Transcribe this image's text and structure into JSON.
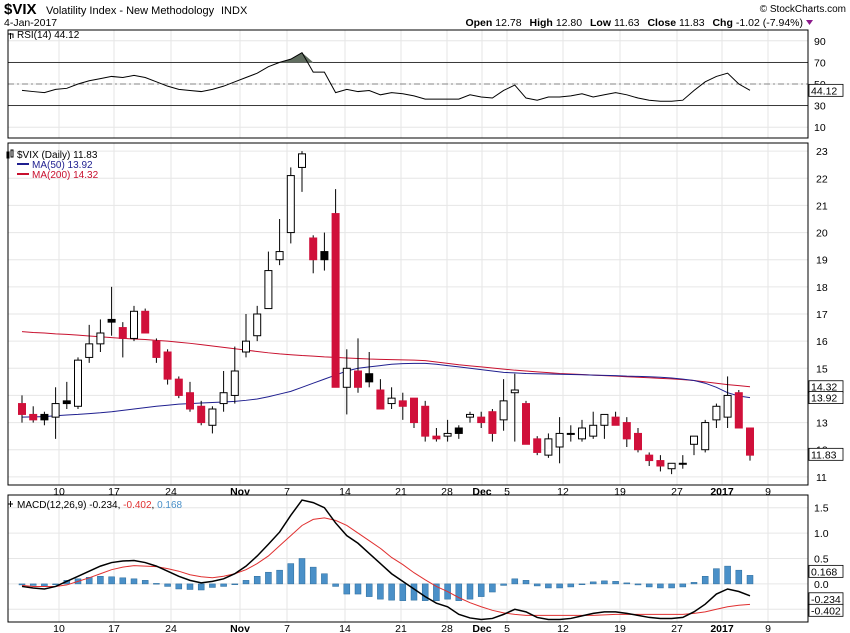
{
  "header": {
    "symbol": "$VIX",
    "name": "Volatility Index - New Methodology",
    "exchange": "INDX",
    "date": "4-Jan-2017",
    "open_label": "Open",
    "open": "12.78",
    "high_label": "High",
    "high": "12.80",
    "low_label": "Low",
    "low": "11.63",
    "close_label": "Close",
    "close": "11.83",
    "chg_label": "Chg",
    "chg": "-1.02 (-7.94%)",
    "watermark": "© StockCharts.com"
  },
  "colors": {
    "up": "#ffffff",
    "down": "#d0103a",
    "black": "#000000",
    "ma50": "#1f1f8f",
    "ma200": "#c8102e",
    "macd_line": "#000000",
    "signal_line": "#e03030",
    "hist": "#4a90c8",
    "grid": "#e6e6e6",
    "rsi_fill": "#606d5f"
  },
  "x_axis": {
    "ticks": [
      "10",
      "17",
      "24",
      "Nov",
      "7",
      "14",
      "21",
      "28",
      "Dec",
      "5",
      "12",
      "19",
      "27",
      "2017",
      "9"
    ],
    "bold": [
      "Nov",
      "Dec",
      "2017"
    ]
  },
  "rsi_panel": {
    "legend": "RSI(14) 44.12",
    "ticks": [
      "90",
      "70",
      "50",
      "30",
      "10"
    ],
    "last_label": "44.12"
  },
  "price_panel": {
    "legend_symbol": "$VIX (Daily) 11.83",
    "legend_ma50": "MA(50) 13.92",
    "legend_ma200": "MA(200) 14.32",
    "ticks": [
      "23",
      "22",
      "21",
      "20",
      "19",
      "18",
      "17",
      "16",
      "15",
      "14",
      "13",
      "12",
      "11"
    ],
    "labels": {
      "ma200": "14.32",
      "ma50": "13.92",
      "close": "11.83"
    }
  },
  "macd_panel": {
    "legend_prefix": "MACD(12,26,9)",
    "macd": "-0.234",
    "signal": "-0.402",
    "hist": "0.168",
    "ticks": [
      "1.5",
      "1.0",
      "0.5",
      "0.0",
      "-0.5"
    ],
    "labels": {
      "hist": "0.168",
      "macd": "-0.234",
      "signal": "-0.402"
    }
  },
  "chart_data": {
    "type": "candlestick",
    "title": "$VIX Volatility Index - New Methodology INDX",
    "series_names": [
      "$VIX (Daily)",
      "MA(50)",
      "MA(200)"
    ],
    "price_ylim": [
      10.7,
      23.3
    ],
    "ohlc": [
      [
        13.7,
        14.0,
        13.0,
        13.3
      ],
      [
        13.3,
        13.6,
        13.0,
        13.1
      ],
      [
        13.3,
        13.4,
        12.9,
        13.1
      ],
      [
        13.2,
        14.3,
        12.4,
        13.7
      ],
      [
        13.8,
        14.5,
        13.5,
        13.7
      ],
      [
        13.6,
        15.4,
        13.5,
        15.3
      ],
      [
        15.4,
        16.6,
        15.2,
        15.9
      ],
      [
        15.9,
        16.8,
        15.6,
        16.3
      ],
      [
        16.8,
        18.0,
        16.2,
        16.7
      ],
      [
        16.5,
        16.7,
        15.4,
        16.1
      ],
      [
        16.1,
        17.3,
        16.0,
        17.1
      ],
      [
        17.1,
        17.2,
        16.3,
        16.3
      ],
      [
        16.0,
        16.1,
        15.2,
        15.4
      ],
      [
        15.6,
        15.7,
        14.4,
        14.6
      ],
      [
        14.6,
        14.7,
        13.9,
        14.0
      ],
      [
        14.1,
        14.5,
        13.4,
        13.5
      ],
      [
        13.6,
        13.8,
        12.9,
        13.0
      ],
      [
        12.9,
        13.6,
        12.6,
        13.5
      ],
      [
        13.7,
        14.9,
        13.4,
        14.1
      ],
      [
        14.0,
        15.8,
        13.7,
        14.9
      ],
      [
        15.6,
        17.0,
        15.4,
        16.0
      ],
      [
        16.2,
        17.3,
        16.0,
        17.0
      ],
      [
        17.2,
        19.3,
        17.2,
        18.6
      ],
      [
        19.0,
        20.5,
        18.8,
        19.3
      ],
      [
        20.0,
        22.4,
        19.6,
        22.1
      ],
      [
        22.4,
        23.0,
        21.5,
        22.9
      ],
      [
        19.8,
        19.9,
        18.5,
        19.0
      ],
      [
        19.3,
        20.0,
        18.6,
        19.0
      ],
      [
        20.7,
        21.6,
        14.3,
        14.3
      ],
      [
        14.3,
        15.7,
        13.3,
        15.0
      ],
      [
        14.9,
        16.1,
        14.1,
        14.3
      ],
      [
        14.8,
        15.6,
        14.3,
        14.5
      ],
      [
        14.2,
        14.6,
        13.5,
        13.5
      ],
      [
        13.7,
        14.3,
        13.5,
        13.9
      ],
      [
        13.8,
        14.1,
        13.1,
        13.6
      ],
      [
        13.9,
        13.9,
        12.8,
        13.0
      ],
      [
        13.6,
        13.8,
        12.3,
        12.5
      ],
      [
        12.5,
        12.8,
        12.3,
        12.4
      ],
      [
        12.5,
        13.1,
        12.3,
        12.6
      ],
      [
        12.8,
        12.9,
        12.4,
        12.6
      ],
      [
        13.2,
        13.4,
        13.0,
        13.3
      ],
      [
        13.2,
        13.4,
        12.8,
        13.0
      ],
      [
        13.4,
        13.5,
        12.3,
        12.6
      ],
      [
        13.1,
        14.6,
        12.7,
        13.8
      ],
      [
        14.1,
        14.8,
        12.3,
        14.2
      ],
      [
        13.7,
        13.8,
        12.3,
        12.2
      ],
      [
        12.4,
        12.5,
        11.8,
        11.9
      ],
      [
        11.8,
        12.6,
        11.7,
        12.4
      ],
      [
        12.1,
        13.2,
        11.5,
        12.6
      ],
      [
        12.6,
        12.9,
        12.3,
        12.6
      ],
      [
        12.4,
        13.1,
        12.3,
        12.8
      ],
      [
        12.5,
        13.4,
        12.4,
        12.9
      ],
      [
        12.9,
        13.2,
        12.4,
        13.3
      ],
      [
        13.2,
        13.4,
        12.9,
        12.9
      ],
      [
        13.0,
        13.2,
        12.1,
        12.4
      ],
      [
        12.6,
        12.8,
        11.9,
        12.0
      ],
      [
        11.8,
        11.9,
        11.4,
        11.6
      ],
      [
        11.6,
        11.8,
        11.2,
        11.4
      ],
      [
        11.3,
        11.5,
        11.1,
        11.5
      ],
      [
        11.5,
        11.8,
        11.3,
        11.5
      ],
      [
        12.2,
        12.5,
        11.8,
        12.5
      ],
      [
        12.0,
        13.1,
        11.9,
        13.0
      ],
      [
        13.1,
        13.7,
        12.8,
        13.6
      ],
      [
        13.2,
        14.7,
        12.8,
        14.0
      ],
      [
        14.1,
        14.2,
        12.8,
        12.8
      ],
      [
        12.8,
        12.8,
        11.6,
        11.8
      ]
    ],
    "ma50": [
      13.2,
      13.21,
      13.22,
      13.25,
      13.28,
      13.3,
      13.33,
      13.36,
      13.4,
      13.45,
      13.5,
      13.55,
      13.6,
      13.64,
      13.68,
      13.7,
      13.72,
      13.74,
      13.76,
      13.78,
      13.82,
      13.87,
      13.95,
      14.05,
      14.15,
      14.3,
      14.45,
      14.6,
      14.75,
      14.9,
      15.0,
      15.05,
      15.1,
      15.15,
      15.17,
      15.18,
      15.18,
      15.15,
      15.1,
      15.05,
      15.0,
      14.95,
      14.9,
      14.85,
      14.83,
      14.81,
      14.8,
      14.79,
      14.78,
      14.77,
      14.76,
      14.75,
      14.74,
      14.73,
      14.71,
      14.7,
      14.69,
      14.67,
      14.64,
      14.6,
      14.55,
      14.45,
      14.3,
      14.1,
      13.98,
      13.92
    ],
    "ma200": [
      16.35,
      16.32,
      16.3,
      16.27,
      16.25,
      16.22,
      16.19,
      16.16,
      16.13,
      16.1,
      16.08,
      16.06,
      16.03,
      16.0,
      15.96,
      15.92,
      15.87,
      15.82,
      15.77,
      15.72,
      15.67,
      15.62,
      15.57,
      15.53,
      15.5,
      15.47,
      15.45,
      15.42,
      15.4,
      15.38,
      15.36,
      15.34,
      15.33,
      15.32,
      15.31,
      15.3,
      15.28,
      15.23,
      15.18,
      15.13,
      15.09,
      15.05,
      15.01,
      14.97,
      14.93,
      14.9,
      14.87,
      14.84,
      14.81,
      14.79,
      14.77,
      14.75,
      14.73,
      14.71,
      14.69,
      14.67,
      14.65,
      14.63,
      14.61,
      14.58,
      14.55,
      14.5,
      14.45,
      14.4,
      14.36,
      14.32
    ],
    "rsi": [
      44.1,
      43,
      42,
      45,
      46,
      50,
      53,
      55,
      57,
      56,
      58,
      56,
      52,
      48,
      45,
      44,
      43,
      45,
      48,
      52,
      56,
      60,
      66,
      70,
      73,
      79,
      61,
      61,
      42,
      45,
      43,
      44,
      40,
      42,
      41,
      39,
      36,
      36,
      36,
      36,
      40,
      38,
      37,
      44,
      49,
      37,
      35,
      38,
      38,
      39,
      41,
      38,
      40,
      42,
      40,
      37,
      35,
      34,
      34,
      35,
      44,
      52,
      57,
      60,
      50,
      44.12
    ],
    "macd": [
      -0.05,
      -0.08,
      -0.1,
      -0.05,
      0.05,
      0.15,
      0.25,
      0.35,
      0.42,
      0.45,
      0.46,
      0.42,
      0.35,
      0.25,
      0.15,
      0.07,
      0.02,
      0.05,
      0.1,
      0.2,
      0.35,
      0.55,
      0.78,
      1.02,
      1.35,
      1.65,
      1.6,
      1.5,
      1.2,
      0.95,
      0.8,
      0.6,
      0.4,
      0.2,
      0.05,
      -0.1,
      -0.25,
      -0.38,
      -0.45,
      -0.6,
      -0.67,
      -0.7,
      -0.68,
      -0.6,
      -0.5,
      -0.55,
      -0.66,
      -0.7,
      -0.7,
      -0.68,
      -0.63,
      -0.58,
      -0.55,
      -0.55,
      -0.58,
      -0.62,
      -0.66,
      -0.68,
      -0.68,
      -0.66,
      -0.55,
      -0.4,
      -0.2,
      -0.1,
      -0.15,
      -0.234
    ],
    "signal": [
      -0.03,
      -0.05,
      -0.05,
      -0.05,
      -0.02,
      0.05,
      0.12,
      0.2,
      0.28,
      0.33,
      0.36,
      0.35,
      0.34,
      0.3,
      0.25,
      0.18,
      0.14,
      0.12,
      0.15,
      0.2,
      0.28,
      0.4,
      0.55,
      0.75,
      0.95,
      1.15,
      1.27,
      1.3,
      1.25,
      1.15,
      1.0,
      0.85,
      0.7,
      0.52,
      0.38,
      0.22,
      0.08,
      -0.05,
      -0.15,
      -0.27,
      -0.37,
      -0.45,
      -0.52,
      -0.57,
      -0.6,
      -0.62,
      -0.62,
      -0.62,
      -0.62,
      -0.62,
      -0.62,
      -0.62,
      -0.61,
      -0.6,
      -0.6,
      -0.6,
      -0.6,
      -0.6,
      -0.6,
      -0.6,
      -0.58,
      -0.55,
      -0.5,
      -0.45,
      -0.42,
      -0.402
    ]
  }
}
